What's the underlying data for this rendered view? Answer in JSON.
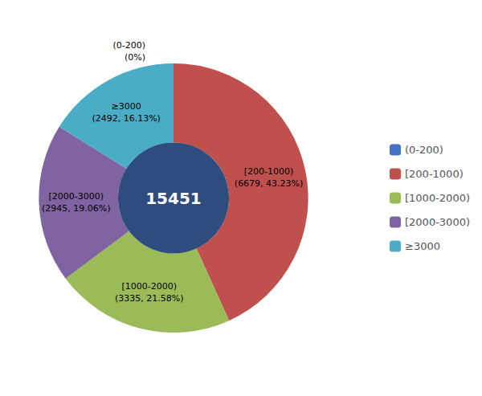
{
  "chart_data": {
    "type": "pie",
    "categories": [
      "(0-200)",
      "[200-1000)",
      "[1000-2000)",
      "[2000-3000)",
      "≥3000"
    ],
    "values": [
      0,
      6679,
      3335,
      2945,
      2492
    ],
    "value_labels": [
      "(0-200)\n(0%)",
      "[200-1000)\n(6679, 43.23%)",
      "[1000-2000)\n(3335, 21.58%)",
      "[2000-3000)\n(2945, 19.06%)",
      "≥3000\n(2492, 16.13%)"
    ],
    "colors": [
      "#4472C4",
      "#C0504D",
      "#9BBB59",
      "#8064A2",
      "#4BACC6"
    ],
    "annotations": [
      {
        "text": "15451",
        "color": "#2E4C7E"
      }
    ],
    "data_labels": true,
    "legend": "right"
  }
}
